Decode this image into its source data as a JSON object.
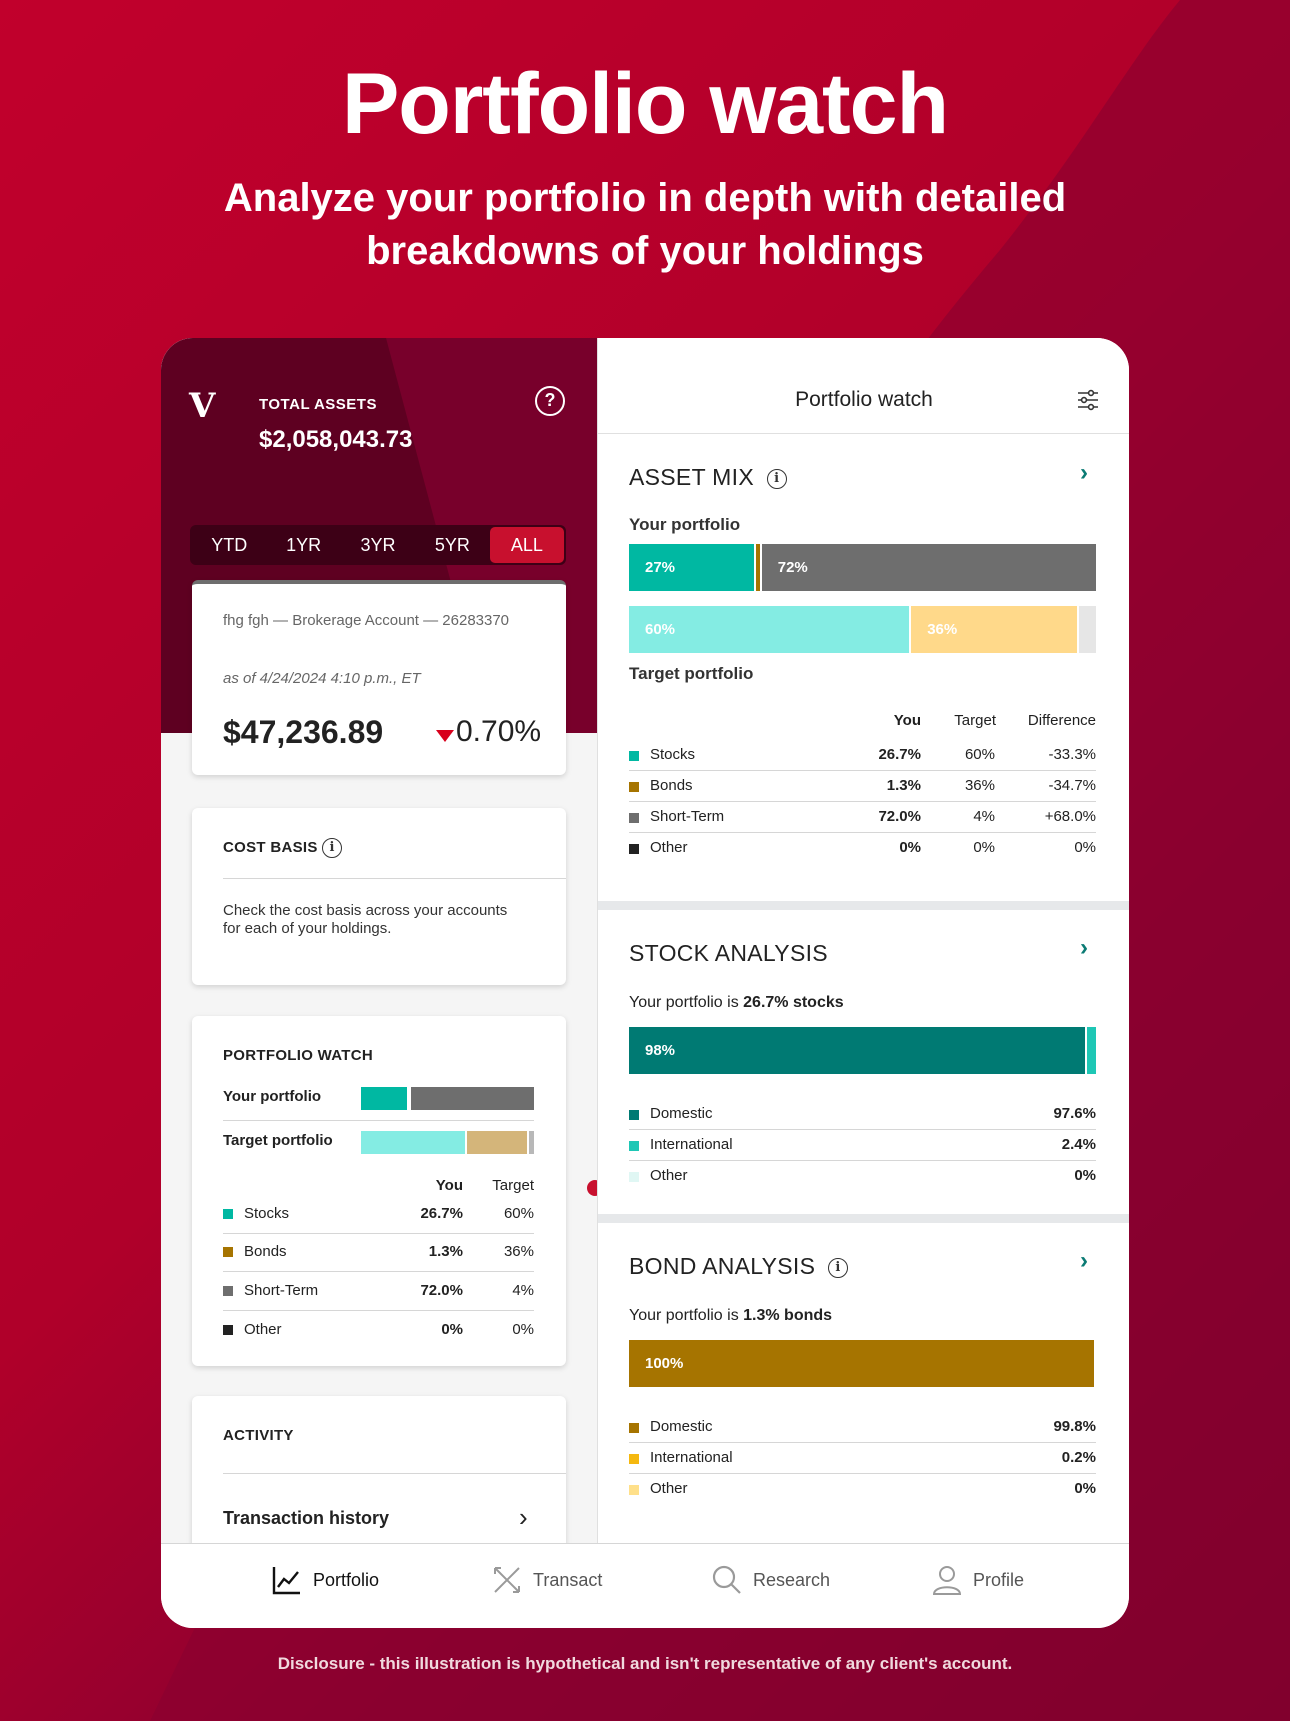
{
  "hero": {
    "title": "Portfolio watch",
    "subtitle": "Analyze your portfolio in depth with detailed breakdowns of your holdings"
  },
  "disclosure": "Disclosure - this illustration is hypothetical and isn't representative of any client's account.",
  "colors": {
    "brand_red": "#c8102e",
    "stocks": "#00b8a2",
    "bonds": "#a67400",
    "short_term": "#6e6e6e",
    "other": "#222222",
    "target_stocks": "#84ece3",
    "target_bonds": "#ffd98a",
    "target_bonds_left": "#d4b57a",
    "domestic_stock": "#007a73",
    "international_stock": "#1ec7b5",
    "other_stock": "#e0f7f4",
    "domestic_bond": "#a67400",
    "international_bond": "#f5b80f",
    "other_bond": "#ffe08a"
  },
  "left": {
    "logo": "V",
    "total_assets_label": "TOTAL ASSETS",
    "total_assets_value": "$2,058,043.73",
    "help_icon": "?",
    "range_tabs": [
      "YTD",
      "1YR",
      "3YR",
      "5YR",
      "ALL"
    ],
    "active_range": "ALL",
    "account": {
      "name": "fhg fgh — Brokerage Account — 26283370",
      "as_of": "as of 4/24/2024 4:10 p.m., ET",
      "value": "$47,236.89",
      "change": "0.70%",
      "direction": "down"
    },
    "cost_basis": {
      "title": "COST BASIS",
      "text": "Check the cost basis across your accounts for each of your holdings."
    },
    "portfolio_watch": {
      "title": "PORTFOLIO WATCH",
      "your_label": "Your portfolio",
      "target_label": "Target portfolio",
      "your_mix": [
        26.7,
        1.3,
        72.0,
        0
      ],
      "target_mix": [
        60,
        36,
        4,
        0
      ],
      "col_you": "You",
      "col_target": "Target",
      "rows": [
        {
          "name": "Stocks",
          "you": "26.7%",
          "target": "60%"
        },
        {
          "name": "Bonds",
          "you": "1.3%",
          "target": "36%"
        },
        {
          "name": "Short-Term",
          "you": "72.0%",
          "target": "4%"
        },
        {
          "name": "Other",
          "you": "0%",
          "target": "0%"
        }
      ]
    },
    "activity": {
      "title": "ACTIVITY",
      "transaction_history": "Transaction history"
    }
  },
  "right": {
    "header_title": "Portfolio watch",
    "asset_mix": {
      "title": "ASSET MIX",
      "your_label": "Your portfolio",
      "target_label": "Target portfolio",
      "your_bar": [
        {
          "pct": 26.7,
          "label": "27%"
        },
        {
          "pct": 1.3,
          "label": ""
        },
        {
          "pct": 72.0,
          "label": "72%"
        }
      ],
      "target_bar": [
        {
          "pct": 60,
          "label": "60%"
        },
        {
          "pct": 36,
          "label": "36%"
        },
        {
          "pct": 4,
          "label": ""
        }
      ],
      "col_you": "You",
      "col_target": "Target",
      "col_diff": "Difference",
      "rows": [
        {
          "name": "Stocks",
          "you": "26.7%",
          "target": "60%",
          "diff": "-33.3%"
        },
        {
          "name": "Bonds",
          "you": "1.3%",
          "target": "36%",
          "diff": "-34.7%"
        },
        {
          "name": "Short-Term",
          "you": "72.0%",
          "target": "4%",
          "diff": "+68.0%"
        },
        {
          "name": "Other",
          "you": "0%",
          "target": "0%",
          "diff": "0%"
        }
      ]
    },
    "stock_analysis": {
      "title": "STOCK ANALYSIS",
      "sub_prefix": "Your portfolio is ",
      "sub_bold": "26.7% stocks",
      "bar_label": "98%",
      "bar": [
        97.6,
        2.4,
        0
      ],
      "rows": [
        {
          "name": "Domestic",
          "value": "97.6%"
        },
        {
          "name": "International",
          "value": "2.4%"
        },
        {
          "name": "Other",
          "value": "0%"
        }
      ]
    },
    "bond_analysis": {
      "title": "BOND ANALYSIS",
      "sub_prefix": "Your portfolio is ",
      "sub_bold": "1.3% bonds",
      "bar_label": "100%",
      "bar": [
        99.8,
        0.2,
        0
      ],
      "rows": [
        {
          "name": "Domestic",
          "value": "99.8%"
        },
        {
          "name": "International",
          "value": "0.2%"
        },
        {
          "name": "Other",
          "value": "0%"
        }
      ]
    }
  },
  "bottom_nav": [
    {
      "label": "Portfolio",
      "icon": "chart-line-icon",
      "active": true
    },
    {
      "label": "Transact",
      "icon": "arrows-swap-icon",
      "active": false
    },
    {
      "label": "Research",
      "icon": "search-icon",
      "active": false
    },
    {
      "label": "Profile",
      "icon": "person-icon",
      "active": false
    }
  ]
}
